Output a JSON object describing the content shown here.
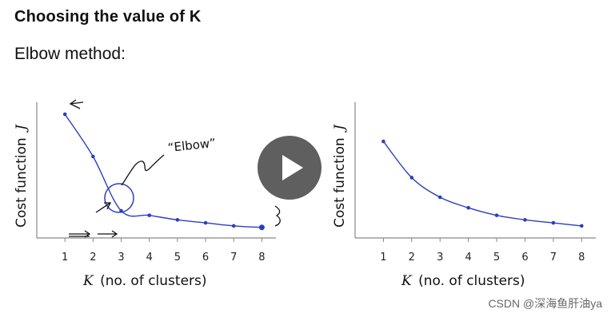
{
  "slide": {
    "title": "Choosing the value of K",
    "subtitle": "Elbow method:",
    "watermark": "CSDN @深海鱼肝油ya"
  },
  "annotations": {
    "elbow_label": "“Elbow”"
  },
  "colors": {
    "curve": "#2a3fbf",
    "play_bg": "#333333"
  },
  "video": {
    "icon": "play-icon"
  },
  "chart_data": [
    {
      "type": "line",
      "x": [
        1,
        2,
        3,
        4,
        5,
        6,
        7,
        8
      ],
      "series": [
        {
          "values": [
            4.1,
            2.7,
            0.9,
            0.75,
            0.6,
            0.5,
            0.4,
            0.35
          ]
        }
      ],
      "xlabel_var": "K",
      "xlabel": "(no. of clusters)",
      "ylabel": "Cost function",
      "ylabel_var": "J",
      "xlim": [
        0,
        8.5
      ],
      "ylim": [
        0,
        4.5
      ],
      "xticks": [
        "1",
        "2",
        "3",
        "4",
        "5",
        "6",
        "7",
        "8"
      ],
      "grid": false
    },
    {
      "type": "line",
      "x": [
        1,
        2,
        3,
        4,
        5,
        6,
        7,
        8
      ],
      "series": [
        {
          "values": [
            3.2,
            2.0,
            1.35,
            1.0,
            0.75,
            0.6,
            0.5,
            0.4
          ]
        }
      ],
      "xlabel_var": "K",
      "xlabel": "(no. of clusters)",
      "ylabel": "Cost function",
      "ylabel_var": "J",
      "xlim": [
        0,
        8.5
      ],
      "ylim": [
        0,
        4.5
      ],
      "xticks": [
        "1",
        "2",
        "3",
        "4",
        "5",
        "6",
        "7",
        "8"
      ],
      "grid": false
    }
  ]
}
